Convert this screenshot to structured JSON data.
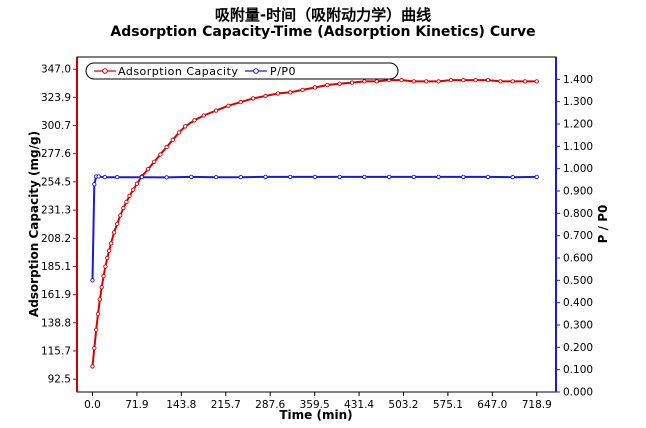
{
  "title_cn": "吸附量-时间（吸附动力学）曲线",
  "title_en": "Adsorption Capacity-Time (Adsorption Kinetics) Curve",
  "colors": {
    "series1": "#dd0000",
    "series2": "#1a1adb",
    "left_axis": "#cc0000",
    "right_axis": "#1a1adb",
    "frame": "#000000"
  },
  "chart_data": {
    "type": "line",
    "title": "Adsorption Capacity-Time (Adsorption Kinetics) Curve",
    "xlabel": "Time (min)",
    "ylabel": "Adsorption Capacity (mg/g)",
    "y2label": "P / P0",
    "xlim": [
      -25,
      750
    ],
    "ylim": [
      82,
      357
    ],
    "y2lim": [
      0,
      1.5
    ],
    "x_ticks": [
      "0.0",
      "71.9",
      "143.8",
      "215.7",
      "287.6",
      "359.5",
      "431.4",
      "503.2",
      "575.1",
      "647.0",
      "718.9"
    ],
    "y_ticks": [
      "92.5",
      "115.7",
      "138.8",
      "161.9",
      "185.1",
      "208.2",
      "231.3",
      "254.5",
      "277.6",
      "300.7",
      "323.9",
      "347.0"
    ],
    "y2_ticks": [
      "0.000",
      "0.100",
      "0.200",
      "0.300",
      "0.400",
      "0.500",
      "0.600",
      "0.700",
      "0.800",
      "0.900",
      "1.000",
      "1.100",
      "1.200",
      "1.300",
      "1.400"
    ],
    "legend_position": "top-left",
    "grid": false,
    "series": [
      {
        "name": "Adsorption Capacity",
        "axis": "left",
        "x": [
          0,
          3,
          6,
          9,
          12,
          15,
          18,
          21,
          24,
          27,
          30,
          35,
          40,
          45,
          50,
          55,
          60,
          66,
          72,
          80,
          90,
          100,
          110,
          120,
          130,
          140,
          150,
          165,
          180,
          200,
          220,
          240,
          260,
          280,
          300,
          320,
          340,
          360,
          380,
          400,
          420,
          440,
          460,
          480,
          500,
          520,
          540,
          560,
          580,
          600,
          620,
          640,
          660,
          680,
          700,
          718.9
        ],
        "y": [
          103,
          118,
          133,
          146,
          158,
          168,
          177,
          185,
          192,
          198,
          204,
          213,
          220,
          227,
          233,
          238,
          243,
          248,
          253,
          259,
          265,
          271,
          277,
          283,
          289,
          295,
          300,
          305,
          309,
          313,
          317,
          320,
          323,
          325,
          327,
          328,
          330,
          332,
          334,
          335,
          336,
          337,
          337,
          338,
          338,
          337,
          337,
          337,
          338,
          338,
          338,
          338,
          337,
          337,
          337,
          337
        ]
      },
      {
        "name": "P/P0",
        "axis": "right",
        "x": [
          0,
          3,
          6,
          10,
          20,
          40,
          80,
          120,
          160,
          200,
          240,
          280,
          320,
          360,
          400,
          440,
          480,
          520,
          560,
          600,
          640,
          680,
          718.9
        ],
        "y": [
          0.5,
          0.93,
          0.965,
          0.965,
          0.962,
          0.962,
          0.962,
          0.961,
          0.963,
          0.962,
          0.962,
          0.963,
          0.963,
          0.963,
          0.963,
          0.963,
          0.963,
          0.963,
          0.963,
          0.963,
          0.963,
          0.962,
          0.963
        ]
      }
    ]
  }
}
